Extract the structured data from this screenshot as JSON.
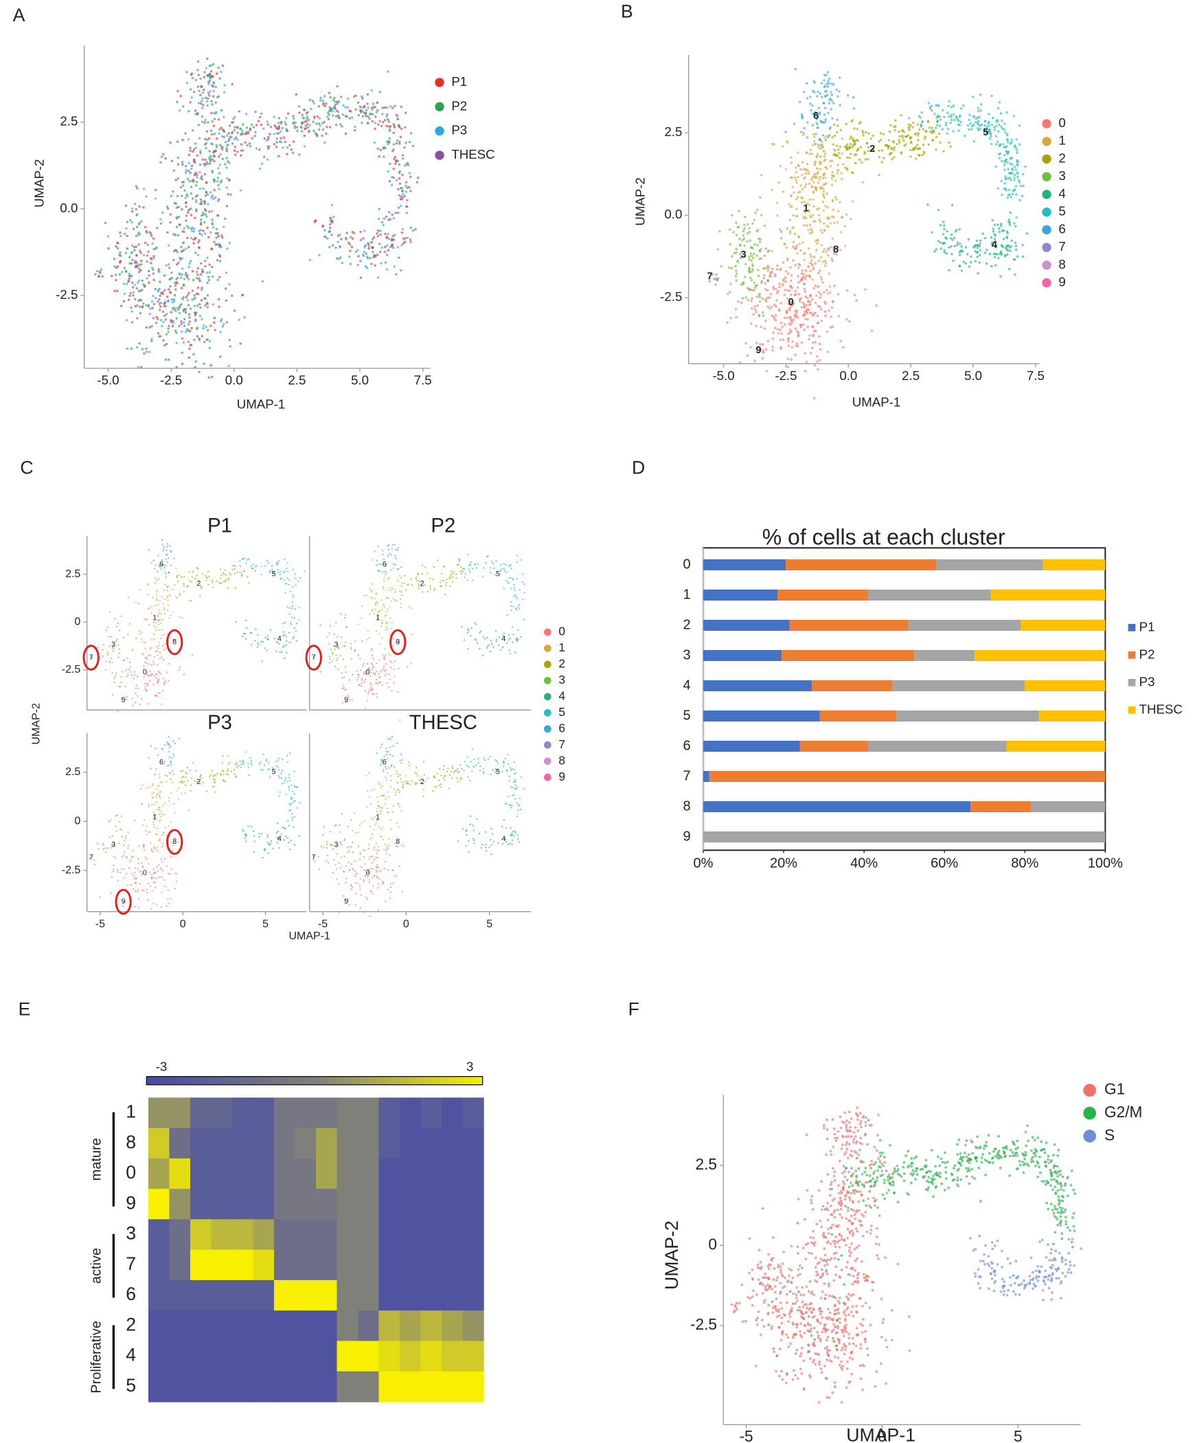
{
  "chart_data": [
    {
      "panel": "A",
      "type": "scatter",
      "xlabel": "UMAP-1",
      "ylabel": "UMAP-2",
      "xlim": [
        -5.95,
        7.8
      ],
      "ylim": [
        -4.6,
        4.7
      ],
      "xticks": [
        {
          "value": -5,
          "label": "-5.0"
        },
        -2.5,
        {
          "value": 0,
          "label": "0.0"
        },
        2.5,
        {
          "value": 5,
          "label": "5.0"
        },
        7.5
      ],
      "yticks": [
        -2.5,
        {
          "value": 0,
          "label": "0.0"
        },
        2.5
      ],
      "series": [
        {
          "name": "P1",
          "color": "#e8302a"
        },
        {
          "name": "P2",
          "color": "#2ca448"
        },
        {
          "name": "P3",
          "color": "#29a9e0"
        },
        {
          "name": "THESC",
          "color": "#8e4ea6"
        }
      ]
    },
    {
      "panel": "B",
      "type": "scatter",
      "xlabel": "UMAP-1",
      "ylabel": "UMAP-2",
      "xlim": [
        -6.4,
        7.65
      ],
      "ylim": [
        -4.5,
        4.86
      ],
      "xticks": [
        {
          "value": -5,
          "label": "-5.0"
        },
        -2.5,
        {
          "value": 0,
          "label": "0.0"
        },
        2.5,
        {
          "value": 5,
          "label": "5.0"
        },
        7.5
      ],
      "yticks": [
        -2.5,
        {
          "value": 0,
          "label": "0.0"
        },
        2.5
      ],
      "clusters": [
        {
          "name": "0",
          "color": "#f8766d",
          "x": -2.3,
          "y": -2.64
        },
        {
          "name": "1",
          "color": "#dba53a",
          "x": -1.7,
          "y": 0.2
        },
        {
          "name": "2",
          "color": "#a3a500",
          "x": 0.96,
          "y": 2.0
        },
        {
          "name": "3",
          "color": "#6bbf3a",
          "x": -4.2,
          "y": -1.2
        },
        {
          "name": "4",
          "color": "#20b27a",
          "x": 5.85,
          "y": -0.9
        },
        {
          "name": "5",
          "color": "#20bfc4",
          "x": 5.5,
          "y": 2.5
        },
        {
          "name": "6",
          "color": "#3aa6e0",
          "x": -1.3,
          "y": 3.0
        },
        {
          "name": "7",
          "color": "#8a8cc8",
          "x": -5.55,
          "y": -1.86
        },
        {
          "name": "8",
          "color": "#d08fd0",
          "x": -0.5,
          "y": -1.05
        },
        {
          "name": "9",
          "color": "#f264a8",
          "x": -3.6,
          "y": -4.1
        }
      ]
    },
    {
      "panel": "C",
      "type": "scatter",
      "xlabel": "UMAP-1",
      "ylabel": "UMAP-2",
      "titles": [
        "P1",
        "P2",
        "P3",
        "THESC"
      ],
      "xlim": [
        -5.8,
        7.5
      ],
      "ylim": [
        -4.6,
        4.5
      ],
      "xticks": [
        -5,
        0,
        5
      ],
      "yticks": [
        2.5,
        0,
        -2.5
      ],
      "clusters": [
        {
          "name": "0",
          "color": "#f8766d"
        },
        {
          "name": "1",
          "color": "#dba53a"
        },
        {
          "name": "2",
          "color": "#a3a500"
        },
        {
          "name": "3",
          "color": "#6bbf3a"
        },
        {
          "name": "4",
          "color": "#20b27a"
        },
        {
          "name": "5",
          "color": "#20bfc4"
        },
        {
          "name": "6",
          "color": "#3aa6e0"
        },
        {
          "name": "7",
          "color": "#8a8cc8"
        },
        {
          "name": "8",
          "color": "#d08fd0"
        },
        {
          "name": "9",
          "color": "#f264a8"
        }
      ]
    },
    {
      "panel": "D",
      "type": "bar",
      "orientation": "horizontal",
      "stacked": true,
      "title": "% of cells at each cluster",
      "xlim": [
        0,
        100
      ],
      "xticks": [
        {
          "value": 0,
          "label": "0%"
        },
        {
          "value": 20,
          "label": "20%"
        },
        {
          "value": 40,
          "label": "40%"
        },
        {
          "value": 60,
          "label": "60%"
        },
        {
          "value": 80,
          "label": "80%"
        },
        {
          "value": 100,
          "label": "100%"
        }
      ],
      "categories": [
        "0",
        "1",
        "2",
        "3",
        "4",
        "5",
        "6",
        "7",
        "8",
        "9"
      ],
      "series": [
        {
          "name": "P1",
          "color": "#4472c4",
          "values": [
            20.5,
            18.5,
            21.5,
            19.5,
            27,
            29,
            24,
            1.5,
            66.5,
            0
          ]
        },
        {
          "name": "P2",
          "color": "#ed7d31",
          "values": [
            37.5,
            22.5,
            29.5,
            33,
            20,
            19,
            17,
            98.5,
            15,
            0
          ]
        },
        {
          "name": "P3",
          "color": "#a5a5a5",
          "values": [
            26.5,
            30.5,
            28,
            15,
            33,
            35.5,
            34.5,
            0,
            18.5,
            100
          ]
        },
        {
          "name": "THESC",
          "color": "#ffc000",
          "values": [
            15.5,
            28.5,
            21,
            32.5,
            20,
            16.5,
            24.5,
            0,
            0,
            0
          ]
        }
      ]
    },
    {
      "panel": "E",
      "type": "heatmap",
      "clim": [
        -3,
        3
      ],
      "cticks": [
        -3,
        3
      ],
      "rows": [
        "1",
        "8",
        "0",
        "9",
        "3",
        "7",
        "6",
        "2",
        "4",
        "5"
      ],
      "groups": [
        {
          "name": "mature",
          "size": 4
        },
        {
          "name": "active",
          "size": 3
        },
        {
          "name": "Proliferative",
          "size": 3
        }
      ],
      "values": [
        [
          0.5,
          0.5,
          -1.5,
          -1.5,
          -2,
          -2,
          -0.5,
          -0.5,
          -0.5,
          0,
          0,
          -2,
          -2.5,
          -2,
          -2.5,
          -2
        ],
        [
          2,
          -1,
          -2,
          -2,
          -2,
          -2,
          -0.5,
          0,
          1,
          0,
          0,
          -2,
          -2.5,
          -2.5,
          -2.5,
          -2.5
        ],
        [
          1,
          2.5,
          -2,
          -2,
          -2,
          -2,
          -0.5,
          -0.5,
          1,
          0,
          0,
          -2.5,
          -2.5,
          -2.5,
          -2.5,
          -2.5
        ],
        [
          3,
          0.5,
          -2,
          -2,
          -2,
          -2,
          -0.5,
          -0.5,
          -0.5,
          0,
          0,
          -2.5,
          -2.5,
          -2.5,
          -2.5,
          -2.5
        ],
        [
          -2,
          -1,
          2,
          1.5,
          1.5,
          1,
          -1,
          -1,
          -1,
          0,
          0,
          -2.5,
          -2.5,
          -2.5,
          -2.5,
          -2.5
        ],
        [
          -2,
          -1,
          3,
          3,
          3,
          2.5,
          -1,
          -1,
          -1,
          0,
          0,
          -2.5,
          -2.5,
          -2.5,
          -2.5,
          -2.5
        ],
        [
          -2,
          -2,
          -2,
          -2,
          -2,
          -2,
          3,
          3,
          3,
          0,
          0,
          -2.5,
          -2.5,
          -2.5,
          -2.5,
          -2.5
        ],
        [
          -2.5,
          -2.5,
          -2.5,
          -2.5,
          -2.5,
          -2.5,
          -2.5,
          -2.5,
          -2.5,
          0,
          -1,
          1.5,
          1,
          1.5,
          1,
          0.5
        ],
        [
          -2.5,
          -2.5,
          -2.5,
          -2.5,
          -2.5,
          -2.5,
          -2.5,
          -2.5,
          -2.5,
          3,
          3,
          2.5,
          2,
          2.5,
          2,
          2
        ],
        [
          -2.5,
          -2.5,
          -2.5,
          -2.5,
          -2.5,
          -2.5,
          -2.5,
          -2.5,
          -2.5,
          0,
          0,
          3,
          3,
          3,
          3,
          3
        ]
      ]
    },
    {
      "panel": "F",
      "type": "scatter",
      "xlabel": "UMAP-1",
      "ylabel": "UMAP-2",
      "xlim": [
        -5.84,
        7.3
      ],
      "ylim": [
        -5.6,
        4.7
      ],
      "xticks": [
        -5,
        0,
        5
      ],
      "yticks": [
        -2.5,
        0,
        2.5
      ],
      "series": [
        {
          "name": "G1",
          "color": "#f0706a"
        },
        {
          "name": "G2/M",
          "color": "#27b44a"
        },
        {
          "name": "S",
          "color": "#6e8fd6"
        }
      ]
    }
  ]
}
